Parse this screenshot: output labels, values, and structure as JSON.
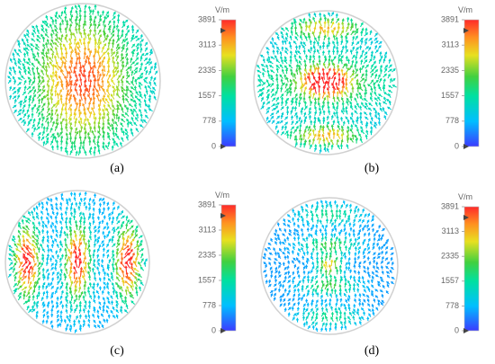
{
  "panels": [
    {
      "label": "(a)",
      "colorbar": {
        "unit": "V/m",
        "ticks": [
          3891,
          3113,
          2335,
          1557,
          778,
          0
        ]
      }
    },
    {
      "label": "(b)",
      "colorbar": {
        "unit": "V/m",
        "ticks": [
          3891,
          3113,
          2335,
          1557,
          778,
          0
        ]
      }
    },
    {
      "label": "(c)",
      "colorbar": {
        "unit": "V/m",
        "ticks": [
          3891,
          3113,
          2335,
          1557,
          778,
          0
        ]
      }
    },
    {
      "label": "(d)",
      "colorbar": {
        "unit": "V/m",
        "ticks": [
          3891,
          3113,
          2335,
          1557,
          778,
          0
        ]
      }
    }
  ]
}
